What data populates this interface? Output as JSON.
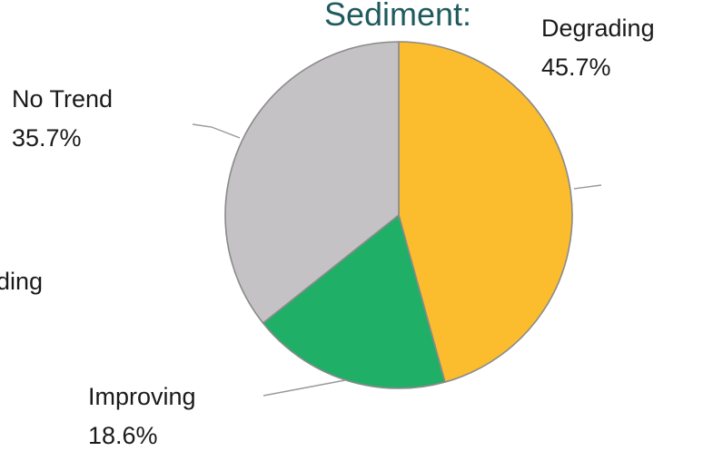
{
  "chart_data": {
    "type": "pie",
    "title": "Sediment:",
    "slices": [
      {
        "label": "Degrading",
        "value": 45.7,
        "value_label": "45.7%",
        "color": "#FBBC2E"
      },
      {
        "label": "Improving",
        "value": 18.6,
        "value_label": "18.6%",
        "color": "#20AF66"
      },
      {
        "label": "No Trend",
        "value": 35.7,
        "value_label": "35.7%",
        "color": "#C4C2C4"
      }
    ],
    "start_angle": "12 o'clock",
    "direction": "clockwise",
    "legend": "none"
  },
  "clipped_text": {
    "left_edge": "ding"
  }
}
